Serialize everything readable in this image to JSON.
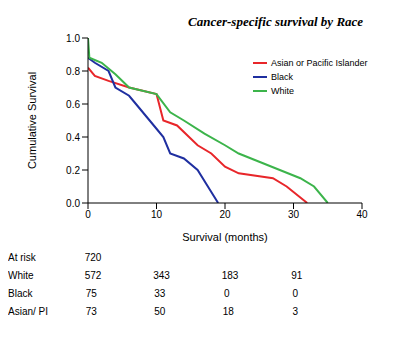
{
  "chart_data": {
    "type": "line",
    "title": "Cancer-specific survival by Race",
    "x_label": "Survival (months)",
    "y_label": "Cumulative Survival",
    "xlim": [
      0,
      40
    ],
    "xticks": [
      0,
      10,
      20,
      30,
      40
    ],
    "ylim": [
      0,
      1
    ],
    "yticks": [
      {
        "value": 0,
        "label": "0.0"
      },
      0.2,
      0.4,
      0.6,
      0.8,
      {
        "value": 1,
        "label": "1.0"
      }
    ],
    "grid": false,
    "legend": "upper right",
    "series": [
      {
        "name": "Asian or Pacific Islander",
        "color": "#e8262a",
        "x": [
          0,
          1,
          3,
          6,
          10,
          11,
          13,
          16,
          18,
          20,
          22,
          27,
          29,
          32
        ],
        "values": [
          0.82,
          0.77,
          0.74,
          0.7,
          0.66,
          0.5,
          0.47,
          0.35,
          0.3,
          0.22,
          0.18,
          0.15,
          0.1,
          0
        ]
      },
      {
        "name": "Black",
        "color": "#1f2fa0",
        "x": [
          0,
          1,
          3,
          4,
          6,
          7,
          9,
          10,
          11,
          12,
          14,
          16,
          17.5,
          19
        ],
        "values": [
          0.88,
          0.85,
          0.8,
          0.7,
          0.65,
          0.6,
          0.5,
          0.45,
          0.4,
          0.3,
          0.27,
          0.2,
          0.1,
          0
        ]
      },
      {
        "name": "White",
        "color": "#3cb44b",
        "x": [
          0,
          0.2,
          2,
          4,
          6,
          10,
          12,
          14,
          17,
          20,
          22,
          25,
          28,
          31,
          33,
          35
        ],
        "values": [
          1,
          0.88,
          0.85,
          0.78,
          0.7,
          0.66,
          0.55,
          0.5,
          0.42,
          0.35,
          0.3,
          0.25,
          0.2,
          0.15,
          0.1,
          0
        ]
      }
    ],
    "at_risk": {
      "label": "At risk",
      "total": 720,
      "rows": [
        {
          "name": "White",
          "values": [
            572,
            343,
            183,
            91
          ]
        },
        {
          "name": "Black",
          "values": [
            75,
            33,
            0,
            0
          ]
        },
        {
          "name": "Asian/ PI",
          "values": [
            73,
            50,
            18,
            3
          ]
        }
      ]
    }
  }
}
